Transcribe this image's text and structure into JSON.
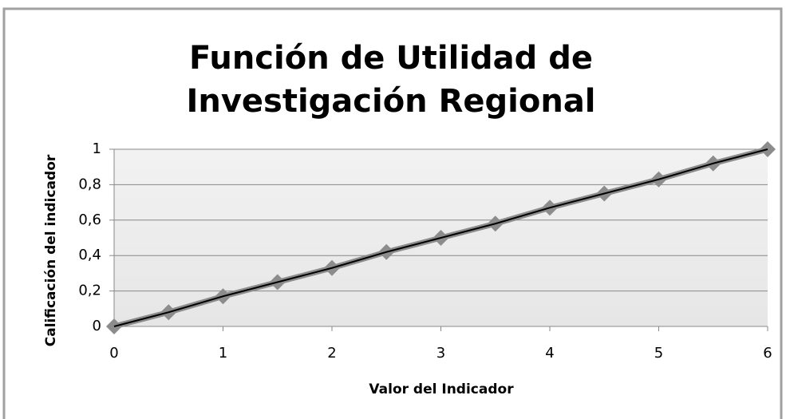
{
  "chart_data": {
    "type": "line",
    "title": "Función de Utilidad de Investigación Regional",
    "xlabel": "Valor del Indicador",
    "ylabel": "Calificación del indicador",
    "x": [
      0,
      0.5,
      1,
      1.5,
      2,
      2.5,
      3,
      3.5,
      4,
      4.5,
      5,
      5.5,
      6
    ],
    "series": [
      {
        "color": "#8c8c8c",
        "values": [
          0,
          0.08,
          0.17,
          0.25,
          0.33,
          0.42,
          0.5,
          0.58,
          0.67,
          0.75,
          0.83,
          0.92,
          1
        ]
      }
    ],
    "trendline_color": "#000000",
    "xlim": [
      0,
      6
    ],
    "xticks": [
      0,
      1,
      2,
      3,
      4,
      5,
      6
    ],
    "ylim": [
      0,
      1
    ],
    "yticks": [
      0,
      {
        "value": 0.2,
        "label": "0,2"
      },
      {
        "value": 0.4,
        "label": "0,4"
      },
      {
        "value": 0.6,
        "label": "0,6"
      },
      {
        "value": 0.8,
        "label": "0,8"
      },
      1
    ],
    "grid": true
  }
}
